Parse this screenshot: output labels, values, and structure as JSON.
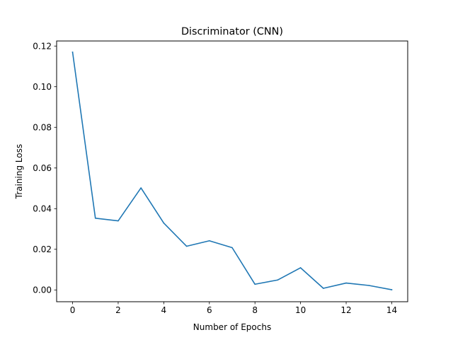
{
  "chart_data": {
    "type": "line",
    "title": "Discriminator (CNN)",
    "xlabel": "Number of Epochs",
    "ylabel": "Training Loss",
    "xlim": [
      -0.7,
      14.7
    ],
    "ylim": [
      -0.0058,
      0.1225
    ],
    "xticks": [
      0,
      2,
      4,
      6,
      8,
      10,
      12,
      14
    ],
    "xtick_labels": [
      "0",
      "2",
      "4",
      "6",
      "8",
      "10",
      "12",
      "14"
    ],
    "yticks": [
      0.0,
      0.02,
      0.04,
      0.06,
      0.08,
      0.1,
      0.12
    ],
    "ytick_labels": [
      "0.00",
      "0.02",
      "0.04",
      "0.06",
      "0.08",
      "0.10",
      "0.12"
    ],
    "grid": false,
    "legend": "none",
    "series": [
      {
        "color": "#1f77b4",
        "x": [
          0,
          1,
          2,
          3,
          4,
          5,
          6,
          7,
          8,
          9,
          10,
          11,
          12,
          13,
          14
        ],
        "y": [
          0.117,
          0.0353,
          0.034,
          0.0502,
          0.0329,
          0.0215,
          0.0242,
          0.0208,
          0.0028,
          0.0049,
          0.0109,
          0.0008,
          0.0034,
          0.0022,
          0.0001
        ]
      }
    ]
  }
}
